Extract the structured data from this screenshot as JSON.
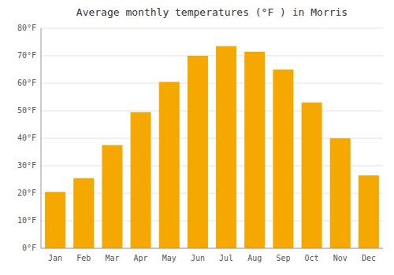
{
  "chart_data": {
    "type": "bar",
    "title": "Average monthly temperatures (°F ) in Morris",
    "categories": [
      "Jan",
      "Feb",
      "Mar",
      "Apr",
      "May",
      "Jun",
      "Jul",
      "Aug",
      "Sep",
      "Oct",
      "Nov",
      "Dec"
    ],
    "values": [
      20.5,
      25.5,
      37.5,
      49.5,
      60.5,
      70.0,
      73.5,
      71.5,
      65.0,
      53.0,
      40.0,
      26.5
    ],
    "color": "#F5A800",
    "ylim": [
      0,
      80
    ],
    "yticks": [
      {
        "value": 0,
        "label": "0°F"
      },
      {
        "value": 10,
        "label": "10°F"
      },
      {
        "value": 20,
        "label": "20°F"
      },
      {
        "value": 30,
        "label": "30°F"
      },
      {
        "value": 40,
        "label": "40°F"
      },
      {
        "value": 50,
        "label": "50°F"
      },
      {
        "value": 60,
        "label": "60°F"
      },
      {
        "value": 70,
        "label": "70°F"
      },
      {
        "value": 80,
        "label": "80°F"
      }
    ],
    "grid": true
  }
}
